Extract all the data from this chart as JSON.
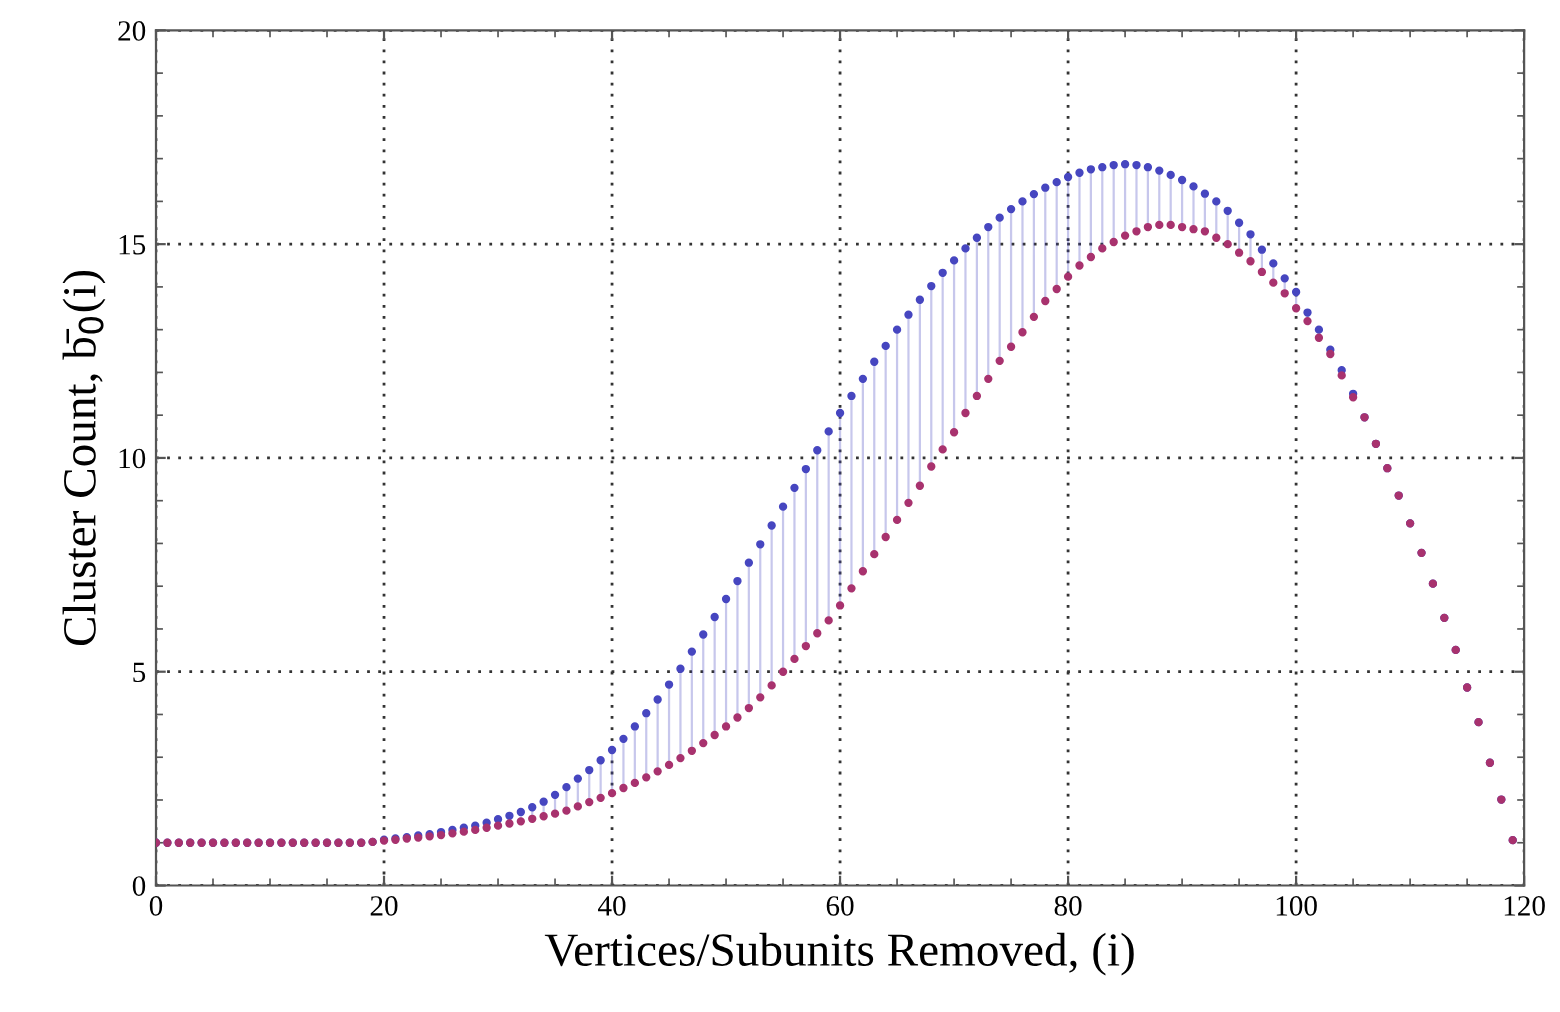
{
  "chart_data": {
    "type": "scatter",
    "xlabel": "Vertices/Subunits Removed, (i)",
    "ylabel": "Cluster Count, b̄$_{0}$(i)",
    "x": [
      0,
      1,
      2,
      3,
      4,
      5,
      6,
      7,
      8,
      9,
      10,
      11,
      12,
      13,
      14,
      15,
      16,
      17,
      18,
      19,
      20,
      21,
      22,
      23,
      24,
      25,
      26,
      27,
      28,
      29,
      30,
      31,
      32,
      33,
      34,
      35,
      36,
      37,
      38,
      39,
      40,
      41,
      42,
      43,
      44,
      45,
      46,
      47,
      48,
      49,
      50,
      51,
      52,
      53,
      54,
      55,
      56,
      57,
      58,
      59,
      60,
      61,
      62,
      63,
      64,
      65,
      66,
      67,
      68,
      69,
      70,
      71,
      72,
      73,
      74,
      75,
      76,
      77,
      78,
      79,
      80,
      81,
      82,
      83,
      84,
      85,
      86,
      87,
      88,
      89,
      90,
      91,
      92,
      93,
      94,
      95,
      96,
      97,
      98,
      99,
      100,
      101,
      102,
      103,
      104,
      105,
      106,
      107,
      108,
      109,
      110,
      111,
      112,
      113,
      114,
      115,
      116,
      117,
      118,
      119
    ],
    "series": [
      {
        "color": "#4646c0",
        "values": [
          1,
          1,
          1,
          1,
          1,
          1,
          1,
          1,
          1,
          1,
          1,
          1,
          1,
          1,
          1,
          1,
          1,
          1,
          1,
          1.02,
          1.07,
          1.1,
          1.13,
          1.17,
          1.2,
          1.25,
          1.3,
          1.35,
          1.4,
          1.47,
          1.55,
          1.63,
          1.72,
          1.83,
          1.96,
          2.12,
          2.3,
          2.5,
          2.7,
          2.93,
          3.17,
          3.43,
          3.72,
          4.03,
          4.35,
          4.7,
          5.07,
          5.47,
          5.87,
          6.28,
          6.7,
          7.12,
          7.55,
          7.98,
          8.42,
          8.86,
          9.3,
          9.74,
          10.18,
          10.62,
          11.05,
          11.45,
          11.85,
          12.25,
          12.62,
          13.0,
          13.35,
          13.7,
          14.02,
          14.33,
          14.62,
          14.9,
          15.15,
          15.4,
          15.62,
          15.82,
          16.0,
          16.17,
          16.32,
          16.45,
          16.57,
          16.67,
          16.75,
          16.8,
          16.85,
          16.87,
          16.85,
          16.8,
          16.72,
          16.62,
          16.5,
          16.35,
          16.18,
          16.0,
          15.78,
          15.5,
          15.23,
          14.87,
          14.55,
          14.2,
          13.88,
          13.4,
          13.0,
          12.53,
          12.05,
          11.5,
          10.95,
          10.33,
          9.76,
          9.12,
          8.47,
          7.78,
          7.06,
          6.26,
          5.51,
          4.63,
          3.82,
          2.87,
          2.01,
          1.06
        ],
        "errors": [
          null,
          null,
          null,
          null,
          null,
          null,
          null,
          null,
          null,
          null,
          null,
          null,
          null,
          null,
          null,
          null,
          null,
          null,
          null,
          null,
          null,
          null,
          null,
          null,
          null,
          [
            1.18,
            1.25
          ],
          [
            1.22,
            1.3
          ],
          [
            1.26,
            1.35
          ],
          [
            1.3,
            1.4
          ],
          [
            1.35,
            1.47
          ],
          [
            1.4,
            1.55
          ],
          [
            1.45,
            1.63
          ],
          [
            1.5,
            1.72
          ],
          [
            1.56,
            1.83
          ],
          [
            1.62,
            1.96
          ],
          [
            1.68,
            2.12
          ],
          [
            1.75,
            2.3
          ],
          [
            1.85,
            2.5
          ],
          [
            1.95,
            2.7
          ],
          [
            2.05,
            2.93
          ],
          [
            2.16,
            3.17
          ],
          [
            2.28,
            3.43
          ],
          [
            2.4,
            3.72
          ],
          [
            2.53,
            4.03
          ],
          [
            2.67,
            4.35
          ],
          [
            2.82,
            4.7
          ],
          [
            2.98,
            5.07
          ],
          [
            3.15,
            5.47
          ],
          [
            3.33,
            5.87
          ],
          [
            3.52,
            6.28
          ],
          [
            3.72,
            6.7
          ],
          [
            3.93,
            7.12
          ],
          [
            4.15,
            7.55
          ],
          [
            4.4,
            7.98
          ],
          [
            4.68,
            8.42
          ],
          [
            5.0,
            8.86
          ],
          [
            5.3,
            9.3
          ],
          [
            5.6,
            9.74
          ],
          [
            5.9,
            10.18
          ],
          [
            6.2,
            10.62
          ],
          [
            6.55,
            11.05
          ],
          [
            6.95,
            11.45
          ],
          [
            7.35,
            11.85
          ],
          [
            7.75,
            12.25
          ],
          [
            8.15,
            12.62
          ],
          [
            8.55,
            13.0
          ],
          [
            8.95,
            13.35
          ],
          [
            9.35,
            13.7
          ],
          [
            9.8,
            14.02
          ],
          [
            10.2,
            14.33
          ],
          [
            10.6,
            14.62
          ],
          [
            11.05,
            14.9
          ],
          [
            11.45,
            15.15
          ],
          [
            11.85,
            15.4
          ],
          [
            12.27,
            15.62
          ],
          [
            12.6,
            15.82
          ],
          [
            12.94,
            16.0
          ],
          [
            13.3,
            16.17
          ],
          [
            13.67,
            16.32
          ],
          [
            13.95,
            16.45
          ],
          [
            14.24,
            16.57
          ],
          [
            14.5,
            16.67
          ],
          [
            14.7,
            16.75
          ],
          [
            14.9,
            16.8
          ],
          [
            15.05,
            16.85
          ],
          [
            15.2,
            16.87
          ],
          [
            15.3,
            16.85
          ],
          [
            15.4,
            16.8
          ],
          [
            15.45,
            16.72
          ],
          [
            15.45,
            16.62
          ],
          [
            15.4,
            16.5
          ],
          [
            15.35,
            16.35
          ],
          [
            15.3,
            16.18
          ],
          [
            15.15,
            16.0
          ],
          [
            15.0,
            15.78
          ],
          [
            14.8,
            15.5
          ],
          [
            14.6,
            15.23
          ],
          [
            14.35,
            14.87
          ],
          [
            14.1,
            14.55
          ],
          [
            13.85,
            14.2
          ],
          [
            13.5,
            13.88
          ],
          [
            13.2,
            13.4
          ],
          [
            12.81,
            13.0
          ],
          null,
          null,
          null,
          null,
          null,
          null,
          null,
          null,
          null,
          null,
          null,
          null,
          null,
          null,
          null,
          null,
          null
        ]
      },
      {
        "color": "#a8326e",
        "values": [
          1,
          1,
          1,
          1,
          1,
          1,
          1,
          1,
          1,
          1,
          1,
          1,
          1,
          1,
          1,
          1,
          1,
          1,
          1,
          1.02,
          1.05,
          1.07,
          1.1,
          1.12,
          1.15,
          1.18,
          1.22,
          1.26,
          1.3,
          1.35,
          1.4,
          1.45,
          1.5,
          1.56,
          1.62,
          1.68,
          1.75,
          1.85,
          1.95,
          2.05,
          2.16,
          2.28,
          2.4,
          2.53,
          2.67,
          2.82,
          2.98,
          3.15,
          3.33,
          3.52,
          3.72,
          3.93,
          4.15,
          4.4,
          4.68,
          5.0,
          5.3,
          5.6,
          5.9,
          6.2,
          6.55,
          6.95,
          7.35,
          7.75,
          8.15,
          8.55,
          8.95,
          9.35,
          9.8,
          10.2,
          10.6,
          11.05,
          11.45,
          11.85,
          12.27,
          12.6,
          12.94,
          13.3,
          13.67,
          13.95,
          14.24,
          14.5,
          14.7,
          14.9,
          15.05,
          15.2,
          15.3,
          15.4,
          15.45,
          15.45,
          15.4,
          15.35,
          15.3,
          15.15,
          15.0,
          14.8,
          14.6,
          14.35,
          14.1,
          13.85,
          13.5,
          13.2,
          12.81,
          12.43,
          11.93,
          11.42,
          10.95,
          10.33,
          9.76,
          9.12,
          8.47,
          7.78,
          7.06,
          6.26,
          5.51,
          4.63,
          3.82,
          2.87,
          2.01,
          1.06
        ]
      }
    ],
    "xlim": [
      0,
      120
    ],
    "xticks": [
      0,
      20,
      40,
      60,
      80,
      100,
      120
    ],
    "ylim": [
      0,
      20
    ],
    "yticks": [
      0,
      5,
      10,
      15,
      20
    ],
    "grid": true,
    "marker": "circle"
  }
}
